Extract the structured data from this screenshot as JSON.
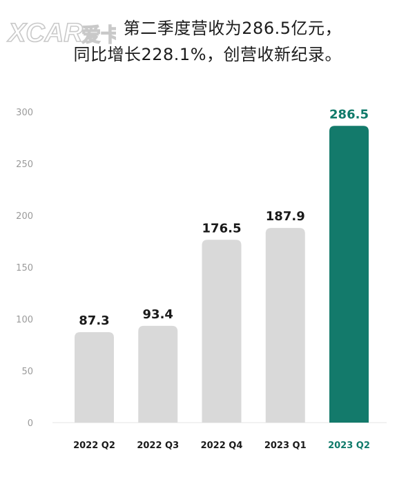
{
  "logo": {
    "text": "XCAR",
    "suffix": "爱卡"
  },
  "headline": {
    "line1": "第二季度营收为286.5亿元，",
    "line2": "同比增长228.1%，创营收新纪录。"
  },
  "colors": {
    "bar": "#d9d9d9",
    "highlight": "#137a6b",
    "text": "#1a1a1a",
    "tick": "#9a9a9a"
  },
  "chart_data": {
    "type": "bar",
    "categories": [
      "2022 Q2",
      "2022 Q3",
      "2022 Q4",
      "2023 Q1",
      "2023 Q2"
    ],
    "values": [
      87.3,
      93.4,
      176.5,
      187.9,
      286.5
    ],
    "value_labels": [
      "87.3",
      "93.4",
      "176.5",
      "187.9",
      "286.5"
    ],
    "highlight_index": 4,
    "ylim": [
      0,
      300
    ],
    "yticks": [
      0,
      50,
      100,
      150,
      200,
      250,
      300
    ],
    "title": "",
    "xlabel": "",
    "ylabel": "",
    "grid": false
  }
}
